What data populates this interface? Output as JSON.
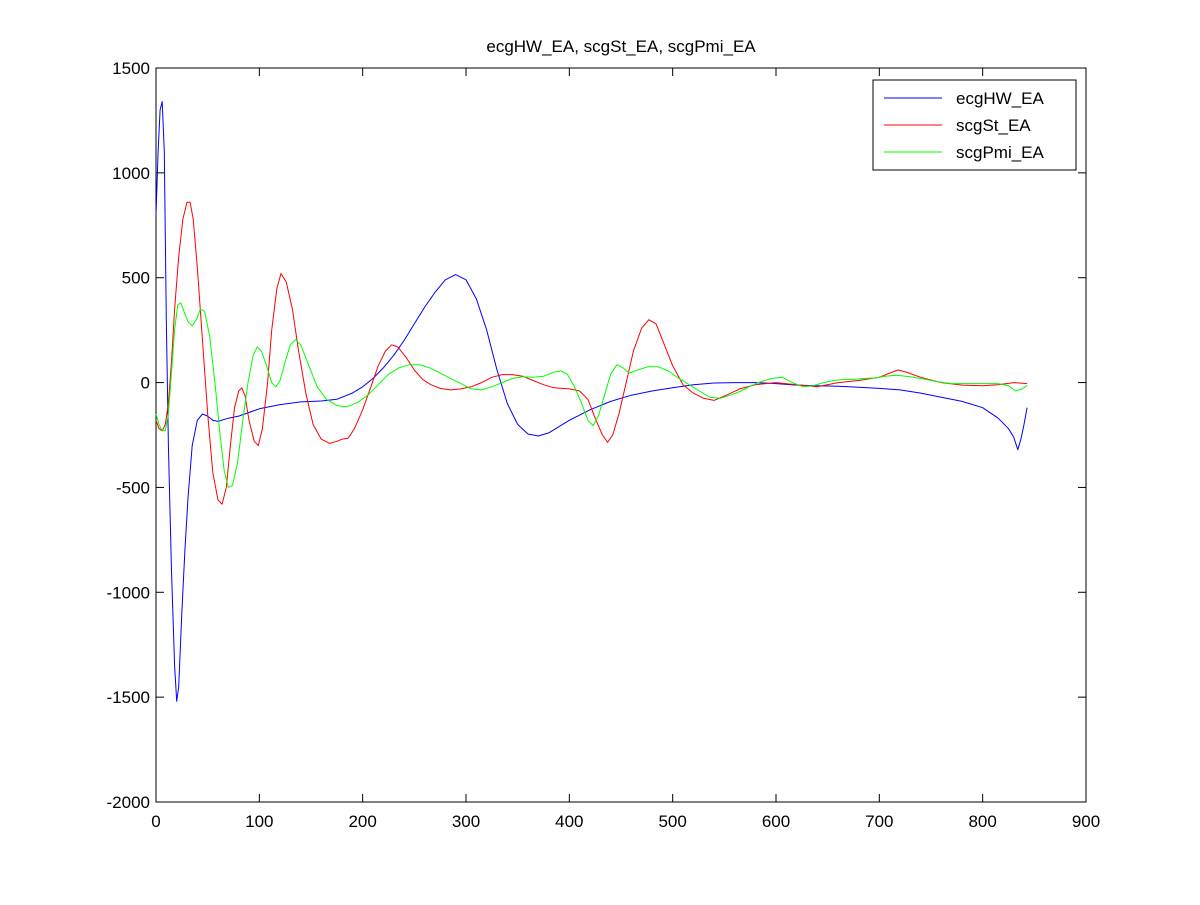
{
  "chart_data": {
    "type": "line",
    "title": "ecgHW_EA, scgSt_EA, scgPmi_EA",
    "xlabel": "",
    "ylabel": "",
    "xlim": [
      0,
      900
    ],
    "ylim": [
      -2000,
      1500
    ],
    "xticks": [
      0,
      100,
      200,
      300,
      400,
      500,
      600,
      700,
      800,
      900
    ],
    "yticks": [
      -2000,
      -1500,
      -1000,
      -500,
      0,
      500,
      1000,
      1500
    ],
    "xtick_labels": [
      "0",
      "100",
      "200",
      "300",
      "400",
      "500",
      "600",
      "700",
      "800",
      "900"
    ],
    "ytick_labels": [
      "-2000",
      "-1500",
      "-1000",
      "-500",
      "0",
      "500",
      "1000",
      "1500"
    ],
    "grid": false,
    "legend_position": "top-right",
    "series": [
      {
        "name": "ecgHW_EA",
        "color": "#0000ff",
        "points": [
          [
            0,
            800
          ],
          [
            2,
            1100
          ],
          [
            4,
            1300
          ],
          [
            6,
            1340
          ],
          [
            8,
            1100
          ],
          [
            10,
            300
          ],
          [
            12,
            -300
          ],
          [
            15,
            -900
          ],
          [
            18,
            -1350
          ],
          [
            20,
            -1520
          ],
          [
            22,
            -1450
          ],
          [
            25,
            -1100
          ],
          [
            28,
            -800
          ],
          [
            31,
            -550
          ],
          [
            35,
            -300
          ],
          [
            40,
            -180
          ],
          [
            45,
            -150
          ],
          [
            50,
            -160
          ],
          [
            55,
            -180
          ],
          [
            60,
            -185
          ],
          [
            70,
            -170
          ],
          [
            80,
            -160
          ],
          [
            100,
            -125
          ],
          [
            120,
            -105
          ],
          [
            140,
            -92
          ],
          [
            160,
            -88
          ],
          [
            175,
            -80
          ],
          [
            190,
            -50
          ],
          [
            200,
            -20
          ],
          [
            210,
            20
          ],
          [
            220,
            70
          ],
          [
            230,
            130
          ],
          [
            240,
            200
          ],
          [
            250,
            280
          ],
          [
            260,
            360
          ],
          [
            270,
            430
          ],
          [
            280,
            490
          ],
          [
            290,
            515
          ],
          [
            300,
            490
          ],
          [
            310,
            400
          ],
          [
            320,
            250
          ],
          [
            330,
            60
          ],
          [
            340,
            -100
          ],
          [
            350,
            -200
          ],
          [
            360,
            -245
          ],
          [
            370,
            -255
          ],
          [
            380,
            -240
          ],
          [
            400,
            -180
          ],
          [
            420,
            -130
          ],
          [
            440,
            -90
          ],
          [
            460,
            -60
          ],
          [
            480,
            -40
          ],
          [
            500,
            -25
          ],
          [
            520,
            -10
          ],
          [
            540,
            -2
          ],
          [
            560,
            0
          ],
          [
            580,
            0
          ],
          [
            600,
            -5
          ],
          [
            620,
            -12
          ],
          [
            640,
            -15
          ],
          [
            660,
            -18
          ],
          [
            680,
            -22
          ],
          [
            700,
            -28
          ],
          [
            720,
            -35
          ],
          [
            740,
            -50
          ],
          [
            760,
            -70
          ],
          [
            780,
            -90
          ],
          [
            800,
            -120
          ],
          [
            815,
            -170
          ],
          [
            825,
            -220
          ],
          [
            830,
            -260
          ],
          [
            834,
            -320
          ],
          [
            837,
            -270
          ],
          [
            840,
            -200
          ],
          [
            843,
            -120
          ]
        ]
      },
      {
        "name": "scgSt_EA",
        "color": "#ff0000",
        "points": [
          [
            0,
            -180
          ],
          [
            3,
            -220
          ],
          [
            6,
            -230
          ],
          [
            9,
            -200
          ],
          [
            12,
            -100
          ],
          [
            15,
            100
          ],
          [
            18,
            350
          ],
          [
            22,
            600
          ],
          [
            26,
            780
          ],
          [
            30,
            860
          ],
          [
            33,
            860
          ],
          [
            36,
            780
          ],
          [
            40,
            550
          ],
          [
            45,
            200
          ],
          [
            50,
            -150
          ],
          [
            55,
            -430
          ],
          [
            60,
            -560
          ],
          [
            64,
            -580
          ],
          [
            68,
            -500
          ],
          [
            72,
            -300
          ],
          [
            76,
            -120
          ],
          [
            80,
            -40
          ],
          [
            83,
            -25
          ],
          [
            86,
            -60
          ],
          [
            90,
            -180
          ],
          [
            95,
            -280
          ],
          [
            99,
            -300
          ],
          [
            103,
            -220
          ],
          [
            108,
            0
          ],
          [
            112,
            250
          ],
          [
            117,
            450
          ],
          [
            121,
            520
          ],
          [
            126,
            480
          ],
          [
            132,
            350
          ],
          [
            138,
            150
          ],
          [
            145,
            -50
          ],
          [
            152,
            -200
          ],
          [
            160,
            -270
          ],
          [
            168,
            -290
          ],
          [
            175,
            -280
          ],
          [
            180,
            -270
          ],
          [
            186,
            -265
          ],
          [
            192,
            -220
          ],
          [
            200,
            -130
          ],
          [
            208,
            -20
          ],
          [
            215,
            80
          ],
          [
            222,
            150
          ],
          [
            228,
            180
          ],
          [
            234,
            170
          ],
          [
            242,
            120
          ],
          [
            250,
            60
          ],
          [
            258,
            15
          ],
          [
            266,
            -10
          ],
          [
            275,
            -28
          ],
          [
            285,
            -35
          ],
          [
            295,
            -30
          ],
          [
            305,
            -20
          ],
          [
            315,
            0
          ],
          [
            325,
            25
          ],
          [
            335,
            38
          ],
          [
            345,
            38
          ],
          [
            355,
            30
          ],
          [
            365,
            10
          ],
          [
            375,
            -10
          ],
          [
            385,
            -25
          ],
          [
            400,
            -30
          ],
          [
            410,
            -40
          ],
          [
            418,
            -80
          ],
          [
            425,
            -170
          ],
          [
            432,
            -250
          ],
          [
            437,
            -285
          ],
          [
            442,
            -250
          ],
          [
            448,
            -150
          ],
          [
            455,
            0
          ],
          [
            462,
            150
          ],
          [
            470,
            260
          ],
          [
            477,
            300
          ],
          [
            484,
            280
          ],
          [
            492,
            180
          ],
          [
            500,
            80
          ],
          [
            510,
            -10
          ],
          [
            520,
            -50
          ],
          [
            530,
            -75
          ],
          [
            540,
            -85
          ],
          [
            552,
            -60
          ],
          [
            565,
            -30
          ],
          [
            580,
            -10
          ],
          [
            600,
            0
          ],
          [
            620,
            -10
          ],
          [
            640,
            -20
          ],
          [
            660,
            0
          ],
          [
            680,
            10
          ],
          [
            700,
            25
          ],
          [
            710,
            45
          ],
          [
            718,
            60
          ],
          [
            726,
            50
          ],
          [
            740,
            25
          ],
          [
            760,
            0
          ],
          [
            780,
            -12
          ],
          [
            800,
            -15
          ],
          [
            815,
            -10
          ],
          [
            830,
            0
          ],
          [
            843,
            -5
          ]
        ]
      },
      {
        "name": "scgPmi_EA",
        "color": "#00ff00",
        "points": [
          [
            0,
            -150
          ],
          [
            3,
            -200
          ],
          [
            6,
            -230
          ],
          [
            9,
            -230
          ],
          [
            12,
            -150
          ],
          [
            15,
            50
          ],
          [
            18,
            250
          ],
          [
            21,
            370
          ],
          [
            24,
            380
          ],
          [
            27,
            340
          ],
          [
            31,
            290
          ],
          [
            35,
            270
          ],
          [
            39,
            300
          ],
          [
            43,
            350
          ],
          [
            47,
            340
          ],
          [
            52,
            220
          ],
          [
            57,
            0
          ],
          [
            62,
            -250
          ],
          [
            66,
            -420
          ],
          [
            70,
            -500
          ],
          [
            74,
            -490
          ],
          [
            79,
            -380
          ],
          [
            84,
            -180
          ],
          [
            89,
            0
          ],
          [
            94,
            130
          ],
          [
            98,
            170
          ],
          [
            102,
            150
          ],
          [
            107,
            80
          ],
          [
            112,
            0
          ],
          [
            116,
            -20
          ],
          [
            120,
            10
          ],
          [
            125,
            100
          ],
          [
            130,
            180
          ],
          [
            135,
            205
          ],
          [
            140,
            180
          ],
          [
            148,
            80
          ],
          [
            156,
            -20
          ],
          [
            165,
            -80
          ],
          [
            175,
            -110
          ],
          [
            185,
            -115
          ],
          [
            195,
            -95
          ],
          [
            205,
            -60
          ],
          [
            215,
            -10
          ],
          [
            225,
            40
          ],
          [
            235,
            70
          ],
          [
            245,
            85
          ],
          [
            255,
            85
          ],
          [
            265,
            70
          ],
          [
            275,
            45
          ],
          [
            285,
            20
          ],
          [
            295,
            -5
          ],
          [
            305,
            -30
          ],
          [
            315,
            -35
          ],
          [
            325,
            -20
          ],
          [
            335,
            0
          ],
          [
            345,
            20
          ],
          [
            355,
            28
          ],
          [
            365,
            25
          ],
          [
            375,
            30
          ],
          [
            385,
            50
          ],
          [
            392,
            55
          ],
          [
            398,
            40
          ],
          [
            405,
            -20
          ],
          [
            412,
            -100
          ],
          [
            418,
            -180
          ],
          [
            423,
            -205
          ],
          [
            428,
            -160
          ],
          [
            434,
            -60
          ],
          [
            440,
            40
          ],
          [
            446,
            85
          ],
          [
            452,
            70
          ],
          [
            458,
            45
          ],
          [
            466,
            60
          ],
          [
            476,
            75
          ],
          [
            486,
            75
          ],
          [
            496,
            55
          ],
          [
            506,
            20
          ],
          [
            516,
            -10
          ],
          [
            526,
            -40
          ],
          [
            536,
            -70
          ],
          [
            546,
            -75
          ],
          [
            556,
            -60
          ],
          [
            566,
            -40
          ],
          [
            576,
            -15
          ],
          [
            586,
            5
          ],
          [
            596,
            20
          ],
          [
            606,
            25
          ],
          [
            616,
            0
          ],
          [
            626,
            -20
          ],
          [
            636,
            -15
          ],
          [
            646,
            0
          ],
          [
            656,
            10
          ],
          [
            666,
            15
          ],
          [
            676,
            15
          ],
          [
            686,
            20
          ],
          [
            696,
            22
          ],
          [
            706,
            30
          ],
          [
            716,
            35
          ],
          [
            726,
            30
          ],
          [
            740,
            20
          ],
          [
            755,
            5
          ],
          [
            770,
            -5
          ],
          [
            785,
            -5
          ],
          [
            800,
            -5
          ],
          [
            815,
            -5
          ],
          [
            825,
            -15
          ],
          [
            832,
            -40
          ],
          [
            838,
            -30
          ],
          [
            843,
            -15
          ]
        ]
      }
    ]
  }
}
